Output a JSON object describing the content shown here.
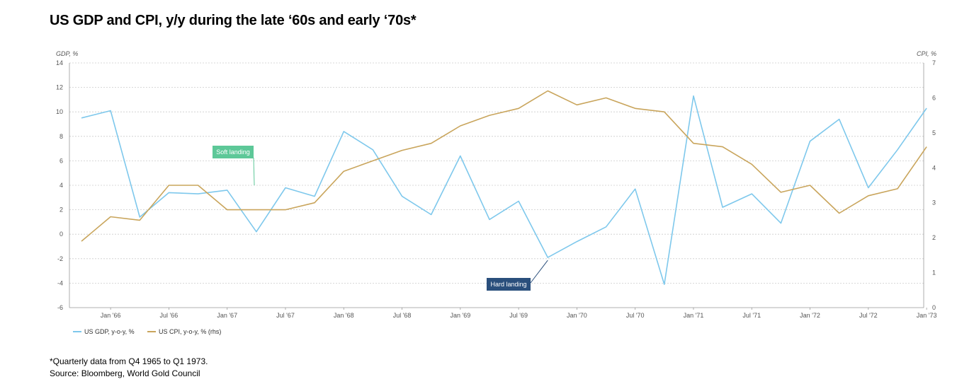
{
  "title": "US GDP and CPI, y/y during the late ‘60s and early ‘70s*",
  "footnote": "*Quarterly data from Q4 1965 to Q1 1973.",
  "source": "Source: Bloomberg, World Gold Council",
  "colors": {
    "gdp": "#7ec8ec",
    "cpi": "#c9a55c",
    "soft_landing": "#5dc898",
    "hard_landing": "#2a4f7c",
    "grid": "#cccccc",
    "axis_text": "#555555"
  },
  "chart_data": {
    "type": "line",
    "y_left_label": "GDP, %",
    "y_right_label": "CPI, %",
    "y_left_lim": [
      -6,
      14
    ],
    "y_right_lim": [
      0,
      7
    ],
    "y_left_ticks": [
      "14",
      "12",
      "10",
      "8",
      "6",
      "4",
      "2",
      "0",
      "-2",
      "-4",
      "-6"
    ],
    "y_right_ticks": [
      "7",
      "6",
      "5",
      "4",
      "3",
      "2",
      "1",
      "0"
    ],
    "x_tick_labels": [
      "Jan '66",
      "Jul '66",
      "Jan '67",
      "Jul '67",
      "Jan '68",
      "Jul '68",
      "Jan '69",
      "Jul '69",
      "Jan '70",
      "Jul '70",
      "Jan '71",
      "Jul '71",
      "Jan '72",
      "Jul '72",
      "Jan '73"
    ],
    "x": [
      "Q4 1965",
      "Q1 1966",
      "Q2 1966",
      "Q3 1966",
      "Q4 1966",
      "Q1 1967",
      "Q2 1967",
      "Q3 1967",
      "Q4 1967",
      "Q1 1968",
      "Q2 1968",
      "Q3 1968",
      "Q4 1968",
      "Q1 1969",
      "Q2 1969",
      "Q3 1969",
      "Q4 1969",
      "Q1 1970",
      "Q2 1970",
      "Q3 1970",
      "Q4 1970",
      "Q1 1971",
      "Q2 1971",
      "Q3 1971",
      "Q4 1971",
      "Q1 1972",
      "Q2 1972",
      "Q3 1972",
      "Q4 1972",
      "Q1 1973"
    ],
    "grid": true,
    "legend_position": "bottom-left",
    "series": [
      {
        "name": "US GDP, y-o-y, %",
        "axis": "left",
        "values": [
          9.5,
          10.1,
          1.4,
          3.4,
          3.3,
          3.6,
          0.2,
          3.8,
          3.1,
          8.4,
          6.9,
          3.1,
          1.6,
          6.4,
          1.2,
          2.7,
          -1.9,
          -0.6,
          0.6,
          3.7,
          -4.1,
          11.3,
          2.2,
          3.3,
          0.9,
          7.6,
          9.4,
          3.8,
          6.9,
          10.3
        ]
      },
      {
        "name": "US CPI, y-o-y, % (rhs)",
        "axis": "right",
        "values": [
          1.9,
          2.6,
          2.5,
          3.5,
          3.5,
          2.8,
          2.8,
          2.8,
          3.0,
          3.9,
          4.2,
          4.5,
          4.7,
          5.2,
          5.5,
          5.7,
          6.2,
          5.8,
          6.0,
          5.7,
          5.6,
          4.7,
          4.6,
          4.1,
          3.3,
          3.5,
          2.7,
          3.2,
          3.4,
          4.6
        ]
      }
    ],
    "annotations": [
      {
        "text": "Soft landing",
        "target_index": 6
      },
      {
        "text": "Hard landing",
        "target_index": 16
      }
    ]
  }
}
